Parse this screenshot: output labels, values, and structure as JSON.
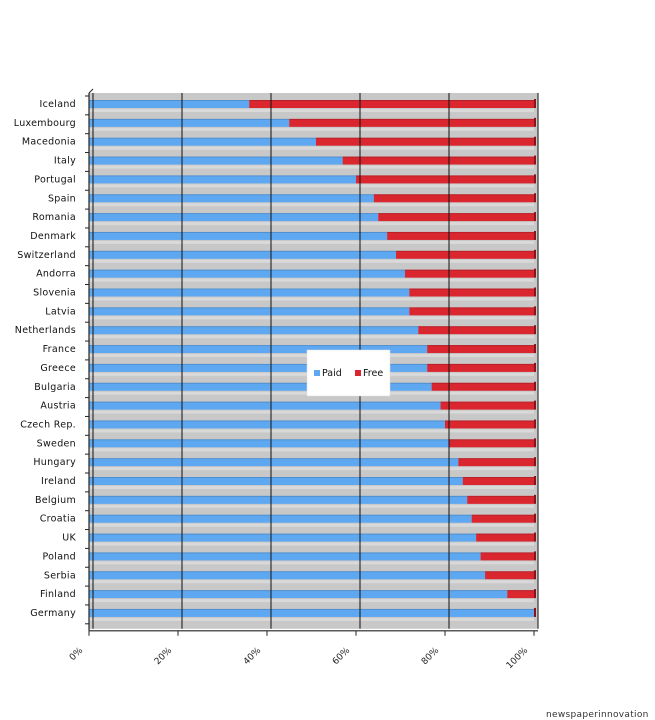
{
  "chart_data": {
    "type": "bar",
    "orientation": "horizontal",
    "stacked": true,
    "categories": [
      "Iceland",
      "Luxembourg",
      "Macedonia",
      "Italy",
      "Portugal",
      "Spain",
      "Romania",
      "Denmark",
      "Switzerland",
      "Andorra",
      "Slovenia",
      "Latvia",
      "Netherlands",
      "France",
      "Greece",
      "Bulgaria",
      "Austria",
      "Czech Rep.",
      "Sweden",
      "Hungary",
      "Ireland",
      "Belgium",
      "Croatia",
      "UK",
      "Poland",
      "Serbia",
      "Finland",
      "Germany"
    ],
    "series": [
      {
        "name": "Paid",
        "color": "#5ea8f2",
        "values": [
          36,
          45,
          51,
          57,
          60,
          64,
          65,
          67,
          69,
          71,
          72,
          72,
          74,
          76,
          76,
          77,
          79,
          80,
          81,
          83,
          84,
          85,
          86,
          87,
          88,
          89,
          94,
          100
        ]
      },
      {
        "name": "Free",
        "color": "#d9262f",
        "values": [
          64,
          55,
          49,
          43,
          40,
          36,
          35,
          33,
          31,
          29,
          28,
          28,
          26,
          24,
          24,
          23,
          21,
          20,
          19,
          17,
          16,
          15,
          14,
          13,
          12,
          11,
          6,
          0
        ]
      }
    ],
    "x_ticks": [
      "0%",
      "20%",
      "40%",
      "60%",
      "80%",
      "100%"
    ],
    "xlim": [
      0,
      100
    ],
    "grid": true,
    "legend_position": "center-right",
    "title": "",
    "xlabel": "",
    "ylabel": ""
  },
  "footer": {
    "credit": "newspaperinnovation"
  }
}
